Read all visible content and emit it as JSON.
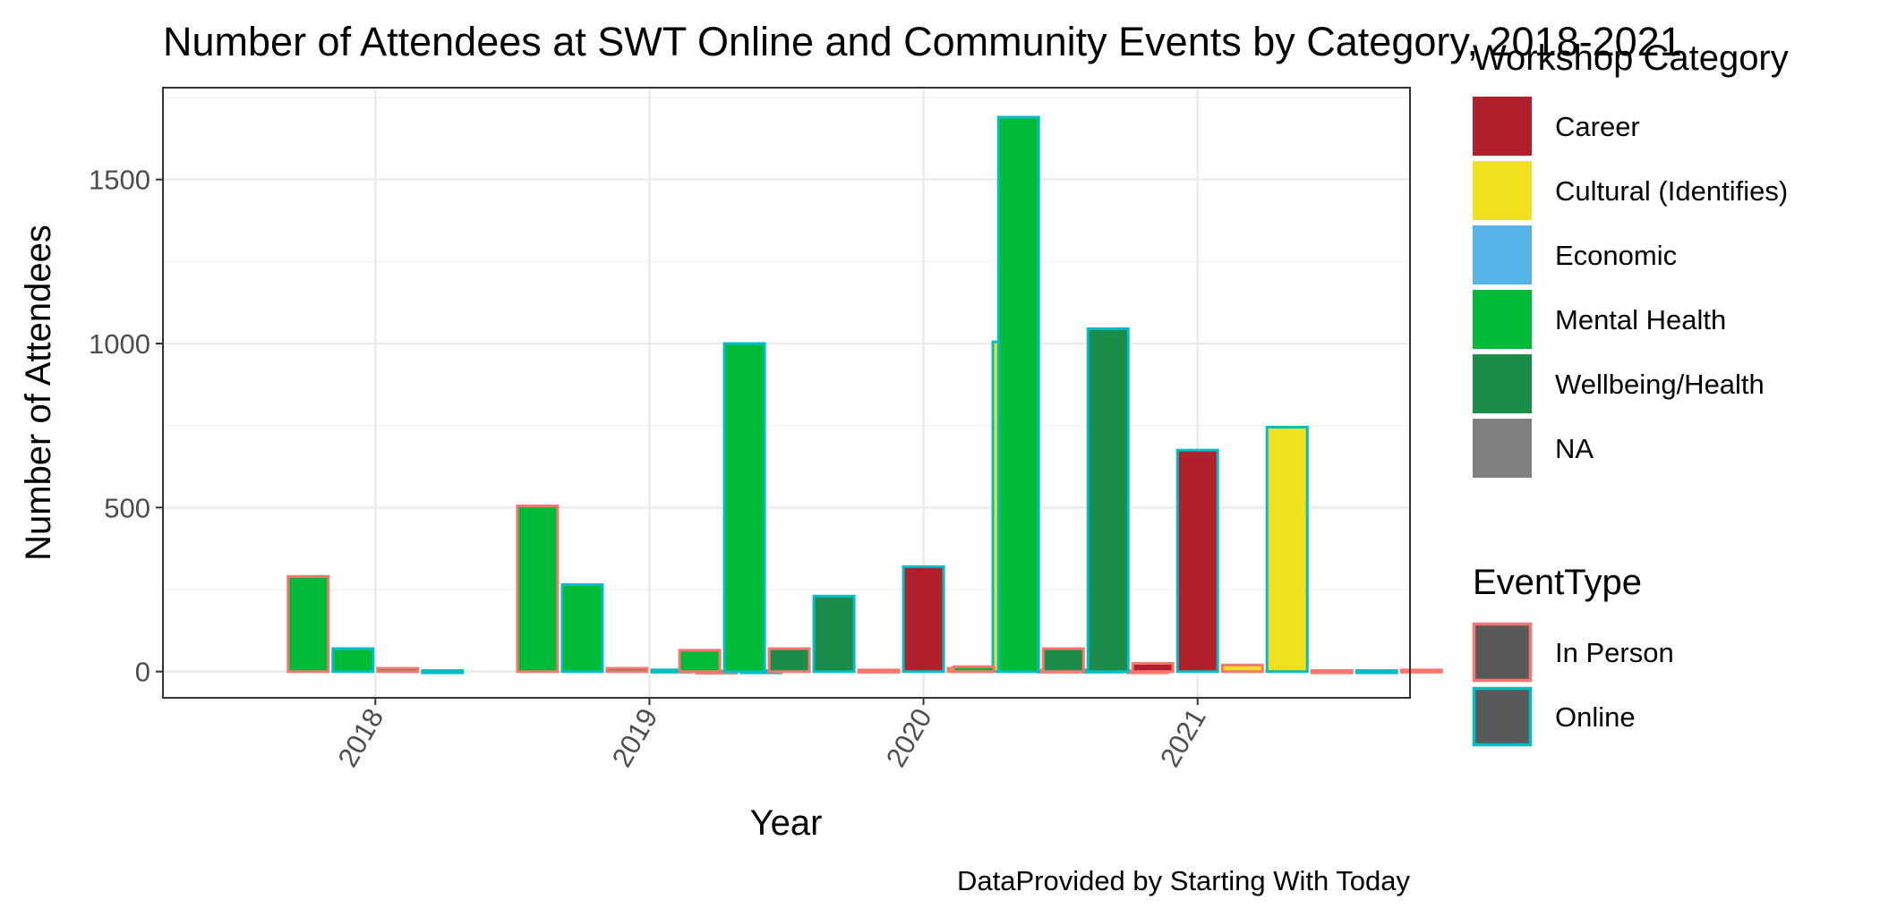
{
  "chart_data": {
    "type": "bar",
    "title": "Number of Attendees at SWT Online and Community Events by Category, 2018-2021",
    "xlabel": "Year",
    "ylabel": "Number of Attendees",
    "caption": "DataProvided by Starting With Today",
    "categories": [
      "2018",
      "2019",
      "2020",
      "2021"
    ],
    "ylim": [
      -80,
      1780
    ],
    "yticks": [
      0,
      500,
      1000,
      1500
    ],
    "grid": true,
    "legend_placement": "right",
    "fill_legend": {
      "title": "Workshop Category",
      "items": [
        {
          "label": "Career",
          "color": "#b2202b"
        },
        {
          "label": "Cultural (Identifies)",
          "color": "#f0e01e"
        },
        {
          "label": "Economic",
          "color": "#56b4e9"
        },
        {
          "label": "Mental Health",
          "color": "#00ba38"
        },
        {
          "label": "Wellbeing/Health",
          "color": "#1b8c4a"
        },
        {
          "label": "NA",
          "color": "#808080"
        }
      ]
    },
    "outline_legend": {
      "title": "EventType",
      "items": [
        {
          "label": "In Person",
          "color": "#f8766d"
        },
        {
          "label": "Online",
          "color": "#00bfc4"
        }
      ]
    },
    "series": [
      {
        "category": "Mental Health",
        "event_type": "In Person",
        "values": [
          290,
          505,
          65,
          15
        ]
      },
      {
        "category": "Mental Health",
        "event_type": "Online",
        "values": [
          70,
          265,
          1000,
          1690
        ]
      },
      {
        "category": "Wellbeing/Health",
        "event_type": "In Person",
        "values": [
          10,
          10,
          70,
          70
        ]
      },
      {
        "category": "Wellbeing/Health",
        "event_type": "Online",
        "values": [
          3,
          5,
          230,
          1045
        ]
      },
      {
        "category": "Career",
        "event_type": "In Person",
        "values": [
          null,
          2,
          5,
          25
        ]
      },
      {
        "category": "Career",
        "event_type": "Online",
        "values": [
          null,
          3,
          320,
          675
        ]
      },
      {
        "category": "Cultural (Identifies)",
        "event_type": "In Person",
        "values": [
          null,
          null,
          10,
          20
        ]
      },
      {
        "category": "Cultural (Identifies)",
        "event_type": "Online",
        "values": [
          null,
          null,
          1005,
          745
        ]
      },
      {
        "category": "Economic",
        "event_type": "In Person",
        "values": [
          null,
          null,
          5,
          3
        ]
      },
      {
        "category": "Economic",
        "event_type": "Online",
        "values": [
          null,
          null,
          5,
          3
        ]
      },
      {
        "category": "NA",
        "event_type": "In Person",
        "values": [
          null,
          null,
          3,
          5
        ]
      }
    ]
  }
}
